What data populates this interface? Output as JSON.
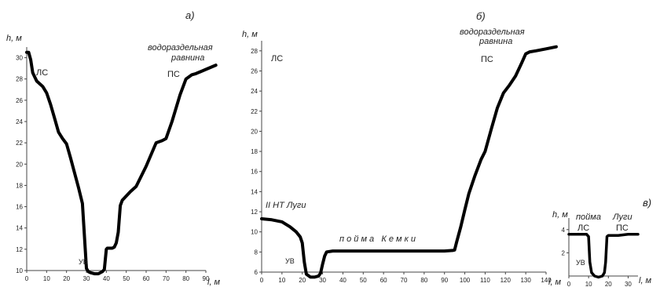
{
  "chart_data": [
    {
      "type": "line",
      "panel_label": "а)",
      "ylabel": "h, м",
      "xlabel": "l, м",
      "xlim": [
        0,
        90
      ],
      "ylim": [
        10,
        31
      ],
      "x_ticks": [
        0,
        10,
        20,
        30,
        40,
        50,
        60,
        70,
        80,
        90
      ],
      "y_ticks": [
        10,
        12,
        14,
        16,
        18,
        20,
        22,
        24,
        26,
        28,
        30
      ],
      "annotations": {
        "left_bank": "ЛС",
        "right_bank": "ПС",
        "water": "УВ",
        "plain_1": "водораздельная",
        "plain_2": "равнина"
      },
      "x": [
        0,
        1,
        2,
        3,
        5,
        8,
        10,
        12,
        14,
        16,
        18,
        20,
        22,
        24,
        26,
        28,
        29,
        30,
        31,
        32,
        34,
        36,
        38,
        39,
        40,
        40.5,
        41,
        43,
        44,
        45,
        46,
        47,
        48,
        50,
        52,
        55,
        60,
        65,
        68,
        70,
        73,
        77,
        80,
        83,
        85,
        90,
        95
      ],
      "y": [
        30.5,
        30.5,
        29.8,
        28.6,
        27.8,
        27.3,
        26.7,
        25.6,
        24.3,
        23,
        22.4,
        21.9,
        20.6,
        19.2,
        17.8,
        16.3,
        13.2,
        10.2,
        9.9,
        9.8,
        9.7,
        9.7,
        9.9,
        10.1,
        12,
        12.1,
        12.1,
        12.1,
        12.2,
        12.6,
        13.6,
        16.1,
        16.6,
        17,
        17.4,
        17.9,
        19.8,
        22,
        22.2,
        22.4,
        24,
        26.5,
        28,
        28.4,
        28.5,
        28.9,
        29.3
      ]
    },
    {
      "type": "line",
      "panel_label": "б)",
      "ylabel": "h, м",
      "xlabel": "l, м",
      "xlim": [
        0,
        140
      ],
      "ylim": [
        6,
        29
      ],
      "x_ticks": [
        0,
        10,
        20,
        30,
        40,
        50,
        60,
        70,
        80,
        90,
        100,
        110,
        120,
        130,
        140
      ],
      "y_ticks": [
        6,
        8,
        10,
        12,
        14,
        16,
        18,
        20,
        22,
        24,
        26,
        28
      ],
      "annotations": {
        "left_bank": "ЛС",
        "right_bank": "ПС",
        "water": "УВ",
        "terrace": "II НТ Луги",
        "floodplain": "п о й м а   К е м к и",
        "plain_1": "водораздельная",
        "plain_2": "равнина"
      },
      "x": [
        0,
        5,
        10,
        14,
        17,
        19,
        20,
        21,
        22,
        24,
        26,
        28,
        29,
        30,
        31,
        32,
        35,
        40,
        50,
        60,
        70,
        80,
        90,
        94,
        95,
        96,
        98,
        100,
        102,
        105,
        108,
        110,
        113,
        116,
        119,
        122,
        125,
        128,
        130,
        132,
        135,
        140,
        145
      ],
      "y": [
        11.3,
        11.2,
        11,
        10.5,
        10,
        9.5,
        8.9,
        7,
        5.8,
        5.5,
        5.5,
        5.6,
        5.9,
        6.8,
        7.6,
        8,
        8.1,
        8.1,
        8.1,
        8.1,
        8.1,
        8.1,
        8.1,
        8.15,
        8.2,
        9,
        10.5,
        12.2,
        13.8,
        15.6,
        17.2,
        18,
        20.2,
        22.3,
        23.8,
        24.6,
        25.5,
        26.8,
        27.7,
        27.9,
        28,
        28.2,
        28.4
      ]
    },
    {
      "type": "line",
      "panel_label": "в)",
      "ylabel": "h, м",
      "xlabel": "l, м",
      "xlim": [
        0,
        35
      ],
      "ylim": [
        0,
        5
      ],
      "x_ticks": [
        0,
        10,
        20,
        30
      ],
      "y_ticks": [
        2,
        4
      ],
      "annotations": {
        "left_bank": "ЛС",
        "right_bank": "ПС",
        "water": "УВ",
        "floodplain": "пойма",
        "river": "Луги"
      },
      "x": [
        0,
        5,
        9,
        10,
        10.6,
        11.5,
        13,
        15,
        17,
        18,
        18.6,
        19.3,
        20,
        25,
        30,
        35
      ],
      "y": [
        3.6,
        3.6,
        3.6,
        3.4,
        1.2,
        0.3,
        0,
        -0.1,
        0,
        0.3,
        1.2,
        3.4,
        3.5,
        3.5,
        3.6,
        3.6
      ]
    }
  ]
}
